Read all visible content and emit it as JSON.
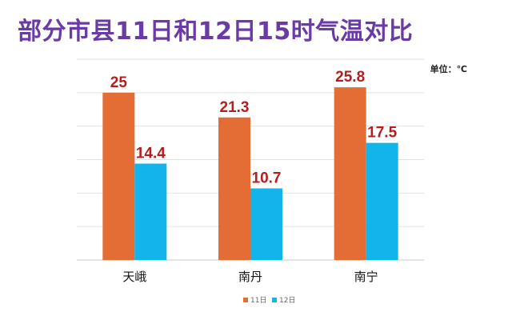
{
  "chart_data": {
    "type": "bar",
    "title": "部分市县11日和12日15时气温对比",
    "unit_label": "单位：℃",
    "categories": [
      "天峨",
      "南丹",
      "南宁"
    ],
    "series": [
      {
        "name": "11日",
        "color": "#e46c35",
        "values": [
          25,
          21.3,
          25.8
        ]
      },
      {
        "name": "12日",
        "color": "#12b4ec",
        "values": [
          14.4,
          10.7,
          17.5
        ]
      }
    ],
    "value_labels": [
      [
        "25",
        "21.3",
        "25.8"
      ],
      [
        "14.4",
        "10.7",
        "17.5"
      ]
    ],
    "ylim": [
      0,
      30
    ],
    "grid": true,
    "legend": "bottom"
  }
}
